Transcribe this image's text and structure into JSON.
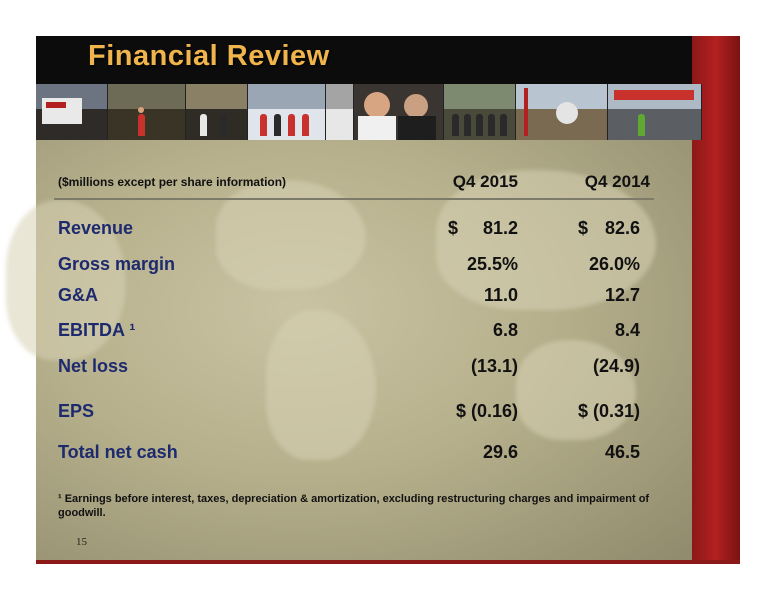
{
  "slide": {
    "title": "Financial Review",
    "page_number": "15"
  },
  "photos": [
    "truck-photo",
    "workers-photo",
    "crew-photo",
    "workers-photo",
    "crew-photo",
    "people-photo",
    "crew-photo",
    "rig-photo",
    "crew-photo"
  ],
  "table": {
    "note": "($millions except per share information)",
    "columns": [
      "Q4 2015",
      "Q4 2014"
    ],
    "rows": [
      {
        "label": "Revenue",
        "q4_2015": "81.2",
        "q4_2014": "82.6",
        "dollar": "$"
      },
      {
        "label": "Gross margin",
        "q4_2015": "25.5%",
        "q4_2014": "26.0%"
      },
      {
        "label": "G&A",
        "q4_2015": "11.0",
        "q4_2014": "12.7"
      },
      {
        "label": "EBITDA ¹",
        "q4_2015": "6.8",
        "q4_2014": "8.4"
      },
      {
        "label": "Net loss",
        "q4_2015": "(13.1)",
        "q4_2014": "(24.9)"
      },
      {
        "label": "EPS",
        "q4_2015": "$ (0.16)",
        "q4_2014": "$ (0.31)"
      },
      {
        "label": "Total net cash",
        "q4_2015": "29.6",
        "q4_2014": "46.5"
      }
    ]
  },
  "footnote": "¹ Earnings before interest, taxes, depreciation & amortization, excluding restructuring charges and impairment of goodwill.",
  "colors": {
    "title": "#f0b44c",
    "label": "#1e2a6e",
    "accent_red": "#b32020"
  }
}
